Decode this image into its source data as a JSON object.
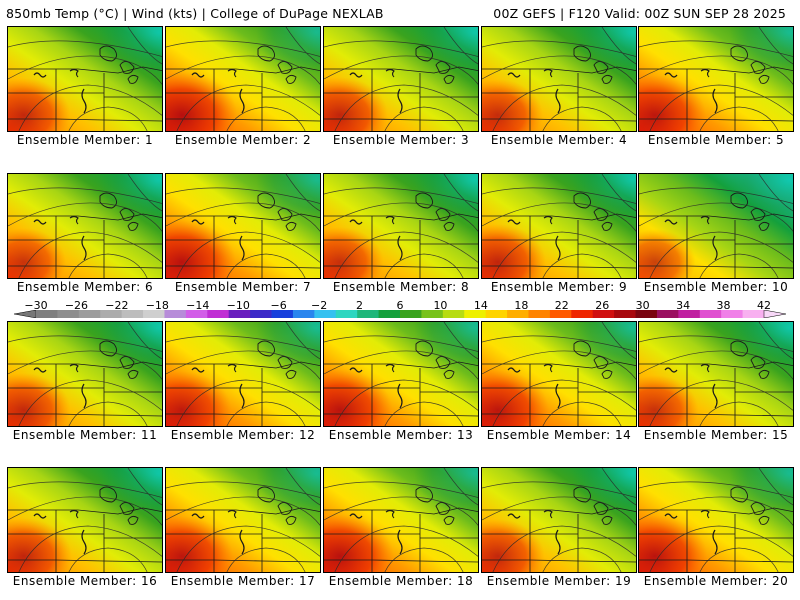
{
  "header": {
    "title_left": "850mb Temp (°C) | Wind (kts) | College of DuPage NEXLAB",
    "title_right": "00Z GEFS | F120 Valid: 00Z SUN SEP 28 2025"
  },
  "colorbar": {
    "labels": [
      "−30",
      "−26",
      "−22",
      "−18",
      "−14",
      "−10",
      "−6",
      "−2",
      "2",
      "6",
      "10",
      "14",
      "18",
      "22",
      "26",
      "30",
      "34",
      "38",
      "42"
    ],
    "colors": [
      "#7f7f7f",
      "#8e8e8e",
      "#9c9c9c",
      "#acacac",
      "#bdbdbd",
      "#cfcfcf",
      "#b78cd9",
      "#d25ee8",
      "#c02ed4",
      "#6a1fbe",
      "#3c2ac8",
      "#1840dc",
      "#2a86ee",
      "#35c1f0",
      "#2ed6c0",
      "#1fb77a",
      "#14a03c",
      "#3aa31e",
      "#78c21a",
      "#b7dc12",
      "#eef000",
      "#ffd400",
      "#ffae00",
      "#ff8400",
      "#ff5a00",
      "#ef2600",
      "#d01010",
      "#a8080e",
      "#7a0410",
      "#9a1060",
      "#c020a0",
      "#e050d0",
      "#f080e8",
      "#f8b0f0"
    ]
  },
  "members": [
    {
      "label": "Ensemble Member: 1",
      "warmth": 0.55
    },
    {
      "label": "Ensemble Member: 2",
      "warmth": 0.85
    },
    {
      "label": "Ensemble Member: 3",
      "warmth": 0.6
    },
    {
      "label": "Ensemble Member: 4",
      "warmth": 0.5
    },
    {
      "label": "Ensemble Member: 5",
      "warmth": 0.7
    },
    {
      "label": "Ensemble Member: 6",
      "warmth": 0.4
    },
    {
      "label": "Ensemble Member: 7",
      "warmth": 0.8
    },
    {
      "label": "Ensemble Member: 8",
      "warmth": 0.45
    },
    {
      "label": "Ensemble Member: 9",
      "warmth": 0.6
    },
    {
      "label": "Ensemble Member: 10",
      "warmth": 0.35
    },
    {
      "label": "Ensemble Member: 11",
      "warmth": 0.55
    },
    {
      "label": "Ensemble Member: 12",
      "warmth": 0.65
    },
    {
      "label": "Ensemble Member: 13",
      "warmth": 0.75
    },
    {
      "label": "Ensemble Member: 14",
      "warmth": 0.7
    },
    {
      "label": "Ensemble Member: 15",
      "warmth": 0.45
    },
    {
      "label": "Ensemble Member: 16",
      "warmth": 0.6
    },
    {
      "label": "Ensemble Member: 17",
      "warmth": 0.7
    },
    {
      "label": "Ensemble Member: 18",
      "warmth": 0.8
    },
    {
      "label": "Ensemble Member: 19",
      "warmth": 0.55
    },
    {
      "label": "Ensemble Member: 20",
      "warmth": 0.75
    }
  ]
}
